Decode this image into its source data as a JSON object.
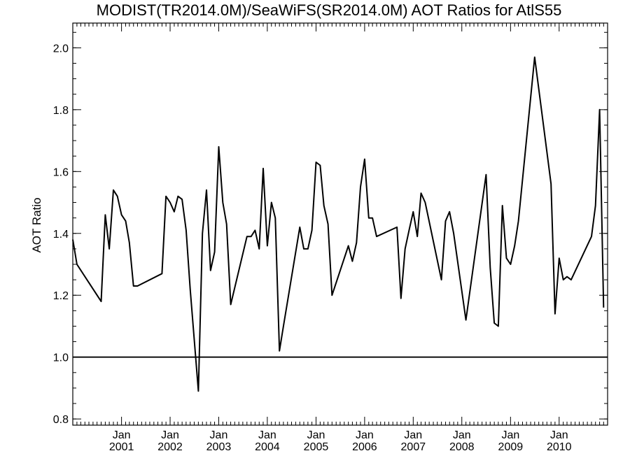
{
  "chart_data": {
    "type": "line",
    "title": "MODIST(TR2014.0M)/SeaWiFS(SR2014.0M)  AOT Ratios for AtlS55",
    "xlabel": "",
    "ylabel": "AOT Ratio",
    "ylim": [
      0.78,
      2.08
    ],
    "xlim": [
      "2000-01-01",
      "2010-12-31"
    ],
    "grid": false,
    "y_ticks": [
      0.8,
      1.0,
      1.2,
      1.4,
      1.6,
      1.8,
      2.0
    ],
    "y_tick_labels": [
      "0.8",
      "1.0",
      "1.2",
      "1.4",
      "1.6",
      "1.8",
      "2.0"
    ],
    "x_ticks": [
      {
        "month": "Jan",
        "year": "2001",
        "date": "2001-01-01"
      },
      {
        "month": "Jan",
        "year": "2002",
        "date": "2002-01-01"
      },
      {
        "month": "Jan",
        "year": "2003",
        "date": "2003-01-01"
      },
      {
        "month": "Jan",
        "year": "2004",
        "date": "2004-01-01"
      },
      {
        "month": "Jan",
        "year": "2005",
        "date": "2005-01-01"
      },
      {
        "month": "Jan",
        "year": "2006",
        "date": "2006-01-01"
      },
      {
        "month": "Jan",
        "year": "2007",
        "date": "2007-01-01"
      },
      {
        "month": "Jan",
        "year": "2008",
        "date": "2008-01-01"
      },
      {
        "month": "Jan",
        "year": "2009",
        "date": "2009-01-01"
      },
      {
        "month": "Jan",
        "year": "2010",
        "date": "2010-01-01"
      }
    ],
    "reference_line": {
      "y": 1.0
    },
    "series": [
      {
        "x": [
          "2000-01",
          "2000-02",
          "2000-08",
          "2000-09",
          "2000-10",
          "2000-11",
          "2000-12",
          "2001-01",
          "2001-02",
          "2001-03",
          "2001-04",
          "2001-05",
          "2001-11",
          "2001-12",
          "2002-01",
          "2002-02",
          "2002-03",
          "2002-04",
          "2002-05",
          "2002-06",
          "2002-08",
          "2002-09",
          "2002-10",
          "2002-11",
          "2002-12",
          "2003-01",
          "2003-02",
          "2003-03",
          "2003-04",
          "2003-08",
          "2003-09",
          "2003-10",
          "2003-11",
          "2003-12",
          "2004-01",
          "2004-02",
          "2004-03",
          "2004-04",
          "2004-05",
          "2004-09",
          "2004-10",
          "2004-11",
          "2004-12",
          "2005-01",
          "2005-02",
          "2005-03",
          "2005-04",
          "2005-05",
          "2005-09",
          "2005-10",
          "2005-11",
          "2005-12",
          "2006-01",
          "2006-02",
          "2006-03",
          "2006-04",
          "2006-09",
          "2006-10",
          "2006-11",
          "2006-12",
          "2007-01",
          "2007-02",
          "2007-03",
          "2007-04",
          "2007-08",
          "2007-09",
          "2007-10",
          "2007-11",
          "2008-02",
          "2008-07",
          "2008-08",
          "2008-09",
          "2008-10",
          "2008-11",
          "2008-12",
          "2009-01",
          "2009-02",
          "2009-03",
          "2009-07",
          "2009-11",
          "2009-12",
          "2010-01",
          "2010-02",
          "2010-03",
          "2010-04",
          "2010-09",
          "2010-10",
          "2010-11",
          "2010-12"
        ],
        "values": [
          1.38,
          1.3,
          1.18,
          1.46,
          1.35,
          1.54,
          1.52,
          1.46,
          1.44,
          1.37,
          1.23,
          1.23,
          1.27,
          1.52,
          1.5,
          1.47,
          1.52,
          1.51,
          1.41,
          1.22,
          0.89,
          1.4,
          1.54,
          1.28,
          1.34,
          1.68,
          1.5,
          1.43,
          1.17,
          1.39,
          1.39,
          1.41,
          1.35,
          1.61,
          1.36,
          1.5,
          1.45,
          1.02,
          1.1,
          1.42,
          1.35,
          1.35,
          1.41,
          1.63,
          1.62,
          1.49,
          1.43,
          1.2,
          1.36,
          1.31,
          1.37,
          1.55,
          1.64,
          1.45,
          1.45,
          1.39,
          1.42,
          1.19,
          1.35,
          1.41,
          1.47,
          1.39,
          1.53,
          1.5,
          1.25,
          1.44,
          1.47,
          1.4,
          1.12,
          1.59,
          1.29,
          1.11,
          1.1,
          1.49,
          1.32,
          1.3,
          1.36,
          1.44,
          1.97,
          1.56,
          1.14,
          1.32,
          1.25,
          1.26,
          1.25,
          1.39,
          1.49,
          1.8,
          1.16
        ]
      }
    ]
  }
}
